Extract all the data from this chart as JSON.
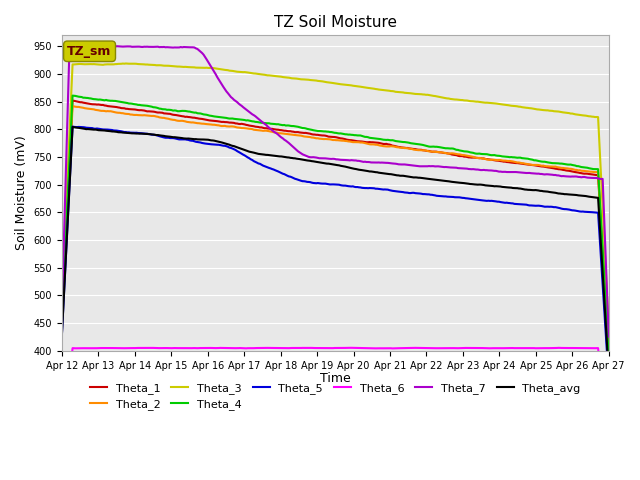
{
  "title": "TZ Soil Moisture",
  "xlabel": "Time",
  "ylabel": "Soil Moisture (mV)",
  "ylim": [
    400,
    970
  ],
  "yticks": [
    400,
    450,
    500,
    550,
    600,
    650,
    700,
    750,
    800,
    850,
    900,
    950
  ],
  "background_color": "#e8e8e8",
  "tz_sm_label": "TZ_sm",
  "tz_sm_bg": "#cccc00",
  "tz_sm_fg": "#660000",
  "date_labels": [
    "Apr 12",
    "Apr 13",
    "Apr 14",
    "Apr 15",
    "Apr 16",
    "Apr 17",
    "Apr 18",
    "Apr 19",
    "Apr 20",
    "Apr 21",
    "Apr 22",
    "Apr 23",
    "Apr 24",
    "Apr 25",
    "Apr 26",
    "Apr 27"
  ],
  "series_colors": {
    "Theta_1": "#cc0000",
    "Theta_2": "#ff8c00",
    "Theta_3": "#cccc00",
    "Theta_4": "#00cc00",
    "Theta_5": "#0000dd",
    "Theta_6": "#ff00ff",
    "Theta_7": "#aa00cc",
    "Theta_avg": "#000000"
  }
}
